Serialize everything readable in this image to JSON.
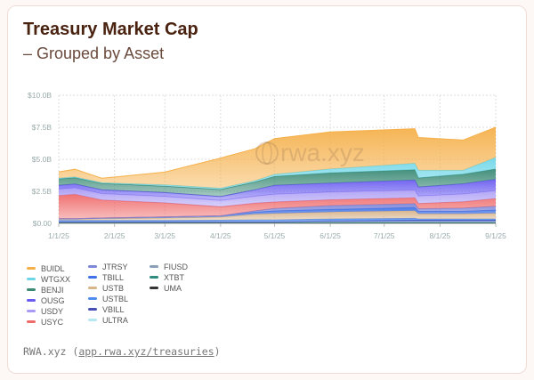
{
  "header": {
    "title": "Treasury Market Cap",
    "subtitle": "– Grouped by Asset"
  },
  "watermark": "rwa.xyz",
  "footer": {
    "prefix": "RWA.xyz (",
    "link": "app.rwa.xyz/treasuries",
    "suffix": ")"
  },
  "chart_data": {
    "type": "area",
    "stacked": true,
    "title": "Treasury Market Cap",
    "subtitle": "– Grouped by Asset",
    "xlabel": "",
    "ylabel": "",
    "ylim": [
      0,
      10
    ],
    "y_unit": "$B",
    "y_ticks": [
      "$0.00",
      "$2.5B",
      "$5.0B",
      "$7.5B",
      "$10.0B"
    ],
    "x_ticks": [
      "1/1/25",
      "2/1/25",
      "3/1/25",
      "4/1/25",
      "5/1/25",
      "6/1/25",
      "7/1/25",
      "8/1/25",
      "9/1/25"
    ],
    "grid": true,
    "legend": "bottom-left",
    "x": [
      "2025-01-01",
      "2025-01-10",
      "2025-01-25",
      "2025-03-01",
      "2025-04-01",
      "2025-04-20",
      "2025-05-01",
      "2025-06-01",
      "2025-07-18",
      "2025-07-20",
      "2025-08-14",
      "2025-09-01"
    ],
    "series": [
      {
        "name": "BUIDL",
        "color": "#f5b04a",
        "values": [
          0.5,
          0.6,
          0.35,
          1.0,
          2.36,
          2.5,
          2.8,
          2.9,
          2.7,
          2.56,
          2.36,
          2.36
        ]
      },
      {
        "name": "WTGXX",
        "color": "#6fd6e8",
        "values": [
          0.05,
          0.05,
          0.05,
          0.1,
          0.1,
          0.1,
          0.15,
          0.3,
          0.5,
          0.6,
          0.3,
          0.9
        ]
      },
      {
        "name": "BENJI",
        "color": "#3a8a75",
        "values": [
          0.5,
          0.5,
          0.5,
          0.5,
          0.55,
          0.6,
          0.7,
          0.8,
          0.8,
          0.7,
          0.75,
          0.8
        ]
      },
      {
        "name": "OUSG",
        "color": "#6a5cf0",
        "values": [
          0.3,
          0.3,
          0.3,
          0.3,
          0.3,
          0.5,
          0.7,
          0.7,
          0.8,
          0.7,
          0.8,
          0.9
        ]
      },
      {
        "name": "USDY",
        "color": "#a99af5",
        "values": [
          0.5,
          0.5,
          0.5,
          0.5,
          0.5,
          0.55,
          0.6,
          0.6,
          0.6,
          0.6,
          0.6,
          0.6
        ]
      },
      {
        "name": "USYC",
        "color": "#ef6b6b",
        "values": [
          1.8,
          1.9,
          1.4,
          1.1,
          0.7,
          0.6,
          0.5,
          0.45,
          0.45,
          0.4,
          0.5,
          0.6
        ]
      },
      {
        "name": "JTRSY",
        "color": "#7d86d8",
        "values": [
          0,
          0,
          0,
          0,
          0,
          0.1,
          0.2,
          0.3,
          0.3,
          0.2,
          0.25,
          0.3
        ]
      },
      {
        "name": "TBILL",
        "color": "#3f72e6",
        "values": [
          0.05,
          0.05,
          0.05,
          0.08,
          0.1,
          0.15,
          0.2,
          0.2,
          0.25,
          0.2,
          0.2,
          0.25
        ]
      },
      {
        "name": "USTB",
        "color": "#d8b48a",
        "values": [
          0.1,
          0.1,
          0.15,
          0.2,
          0.25,
          0.45,
          0.5,
          0.55,
          0.6,
          0.4,
          0.4,
          0.45
        ]
      },
      {
        "name": "USTBL",
        "color": "#4f8cf0",
        "values": [
          0.1,
          0.1,
          0.1,
          0.1,
          0.12,
          0.15,
          0.15,
          0.15,
          0.15,
          0.1,
          0.1,
          0.1
        ]
      },
      {
        "name": "VBILL",
        "color": "#4a4fb8",
        "values": [
          0,
          0,
          0,
          0,
          0,
          0,
          0,
          0.05,
          0.1,
          0.1,
          0.1,
          0.1
        ]
      },
      {
        "name": "ULTRA",
        "color": "#b6e8f2",
        "values": [
          0.03,
          0.03,
          0.03,
          0.03,
          0.03,
          0.03,
          0.03,
          0.03,
          0.03,
          0.03,
          0.03,
          0.03
        ]
      },
      {
        "name": "FIUSD",
        "color": "#8aa0b8",
        "values": [
          0.03,
          0.03,
          0.03,
          0.03,
          0.03,
          0.03,
          0.03,
          0.04,
          0.04,
          0.04,
          0.04,
          0.04
        ]
      },
      {
        "name": "XTBT",
        "color": "#2f8a80",
        "values": [
          0.03,
          0.03,
          0.03,
          0.03,
          0.03,
          0.03,
          0.03,
          0.04,
          0.04,
          0.04,
          0.04,
          0.04
        ]
      },
      {
        "name": "UMA",
        "color": "#333333",
        "values": [
          0.03,
          0.03,
          0.03,
          0.03,
          0.03,
          0.03,
          0.03,
          0.03,
          0.03,
          0.03,
          0.03,
          0.03
        ]
      }
    ]
  }
}
